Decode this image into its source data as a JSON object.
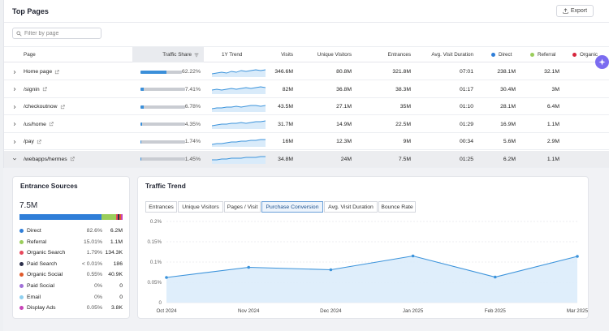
{
  "header": {
    "title": "Top Pages",
    "export_label": "Export"
  },
  "filter": {
    "placeholder": "Filter by page"
  },
  "columns": {
    "page": "Page",
    "traffic_share": "Traffic Share",
    "trend": "1Y Trend",
    "visits": "Visits",
    "unique_visitors": "Unique Visitors",
    "entrances": "Entrances",
    "avg_duration": "Avg. Visit Duration",
    "direct": "Direct",
    "referral": "Referral",
    "organic": "Organic",
    "direct_color": "#2f7ed8",
    "referral_color": "#9acd5b",
    "organic_color": "#d7263d"
  },
  "rows": [
    {
      "page": "Home page",
      "share": "62.22%",
      "share_value": 62.22,
      "visits": "346.6M",
      "unique": "80.8M",
      "entrances": "321.8M",
      "duration": "07:01",
      "direct": "238.1M",
      "referral": "32.1M"
    },
    {
      "page": "/signin",
      "share": "7.41%",
      "share_value": 7.41,
      "visits": "82M",
      "unique": "36.8M",
      "entrances": "38.3M",
      "duration": "01:17",
      "direct": "30.4M",
      "referral": "3M"
    },
    {
      "page": "/checkoutnow",
      "share": "6.78%",
      "share_value": 6.78,
      "visits": "43.5M",
      "unique": "27.1M",
      "entrances": "35M",
      "duration": "01:10",
      "direct": "28.1M",
      "referral": "6.4M"
    },
    {
      "page": "/us/home",
      "share": "4.35%",
      "share_value": 4.35,
      "visits": "31.7M",
      "unique": "14.9M",
      "entrances": "22.5M",
      "duration": "01:29",
      "direct": "16.9M",
      "referral": "1.1M"
    },
    {
      "page": "/pay",
      "share": "1.74%",
      "share_value": 1.74,
      "visits": "16M",
      "unique": "12.3M",
      "entrances": "9M",
      "duration": "00:34",
      "direct": "5.6M",
      "referral": "2.9M"
    },
    {
      "page": "/webapps/hermes",
      "share": "1.45%",
      "share_value": 1.45,
      "visits": "34.8M",
      "unique": "24M",
      "entrances": "7.5M",
      "duration": "01:25",
      "direct": "6.2M",
      "referral": "1.1M"
    }
  ],
  "entrance_sources": {
    "title": "Entrance Sources",
    "total": "7.5M",
    "sources": [
      {
        "name": "Direct",
        "pct": "82.6%",
        "value": "6.2M",
        "share": 82.6,
        "color": "#2f7ed8"
      },
      {
        "name": "Referral",
        "pct": "15.01%",
        "value": "1.1M",
        "share": 15.01,
        "color": "#9acd5b"
      },
      {
        "name": "Organic Search",
        "pct": "1.79%",
        "value": "134.3K",
        "share": 1.79,
        "color": "#e8485c"
      },
      {
        "name": "Paid Search",
        "pct": "< 0.01%",
        "value": "186",
        "share": 0.01,
        "color": "#2b2f4a"
      },
      {
        "name": "Organic Social",
        "pct": "0.55%",
        "value": "40.9K",
        "share": 0.55,
        "color": "#e05a2b"
      },
      {
        "name": "Paid Social",
        "pct": "0%",
        "value": "0",
        "share": 0,
        "color": "#a070d8"
      },
      {
        "name": "Email",
        "pct": "0%",
        "value": "0",
        "share": 0,
        "color": "#8fd0f0"
      },
      {
        "name": "Display Ads",
        "pct": "0.05%",
        "value": "3.8K",
        "share": 0.05,
        "color": "#c845b8"
      }
    ]
  },
  "traffic_trend": {
    "title": "Traffic Trend",
    "tabs": [
      "Entrances",
      "Unique Visitors",
      "Pages / Visit",
      "Purchase Conversion",
      "Avg. Visit Duration",
      "Bounce Rate"
    ],
    "active_tab": "Purchase Conversion"
  },
  "chart_data": {
    "type": "area",
    "title": "",
    "xlabel": "",
    "ylabel": "",
    "x": [
      "Oct 2024",
      "Nov 2024",
      "Dec 2024",
      "Jan 2025",
      "Feb 2025",
      "Mar 2025"
    ],
    "series": [
      {
        "values": [
          0.062,
          0.087,
          0.081,
          0.115,
          0.063,
          0.114
        ]
      }
    ],
    "y_ticks": [
      "0.2%",
      "0.15%",
      "0.1%",
      "0.05%",
      "0"
    ],
    "ylim": [
      0,
      0.2
    ],
    "grid": true,
    "line_color": "#3b93db",
    "fill_color": "#d9ebfa"
  }
}
